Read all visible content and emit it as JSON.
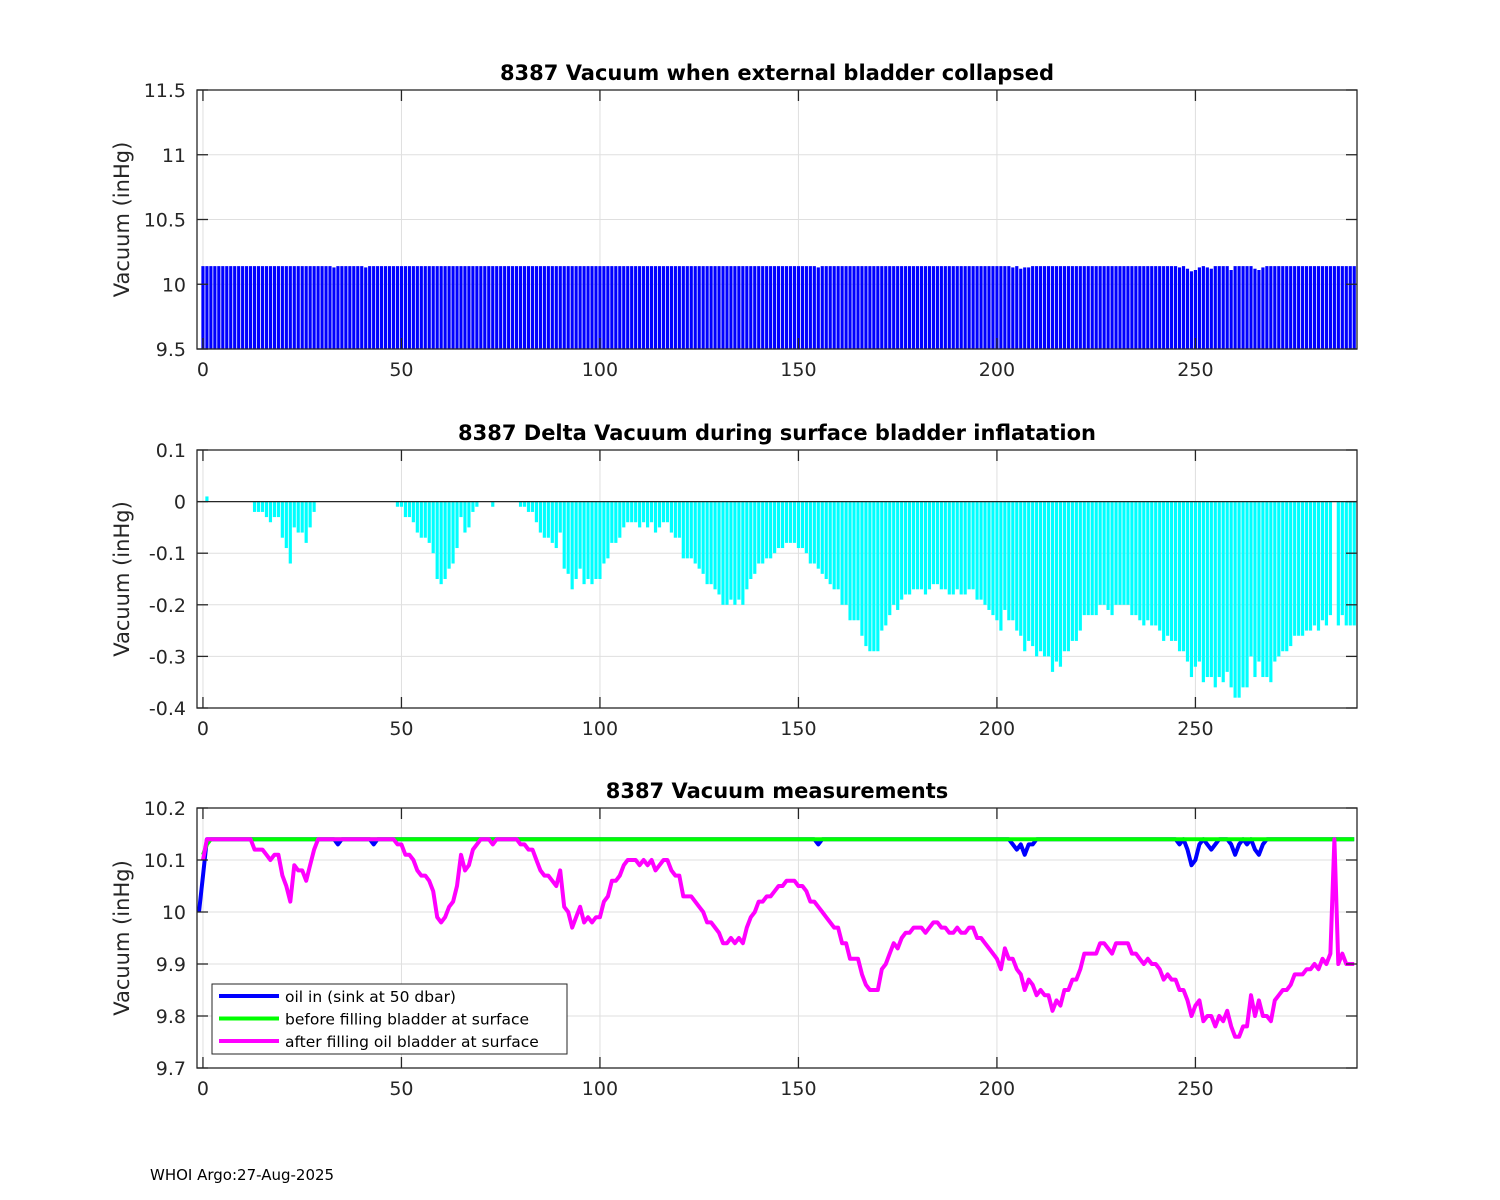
{
  "footer": "WHOI Argo:27-Aug-2025",
  "chart_data": [
    {
      "type": "bar",
      "title": "8387 Vacuum when external bladder collapsed",
      "xlabel": "",
      "ylabel": "Vacuum (inHg)",
      "xlim": [
        -1.5,
        290.7
      ],
      "ylim": [
        9.5,
        11.5
      ],
      "xticks": [
        0,
        50,
        100,
        150,
        200,
        250
      ],
      "yticks": [
        9.5,
        10,
        10.5,
        11,
        11.5
      ],
      "ytick_labels": [
        "9.5",
        "10",
        "10.5",
        "11",
        "11.5"
      ],
      "grid": true,
      "color": "#0000ff",
      "x_range": [
        0,
        290
      ],
      "default_value": 10.14,
      "exceptions": [
        [
          33,
          10.13
        ],
        [
          41,
          10.13
        ],
        [
          155,
          10.13
        ],
        [
          204,
          10.13
        ],
        [
          206,
          10.12
        ],
        [
          207,
          10.13
        ],
        [
          208,
          10.13
        ],
        [
          246,
          10.13
        ],
        [
          248,
          10.12
        ],
        [
          249,
          10.1
        ],
        [
          250,
          10.11
        ],
        [
          251,
          10.13
        ],
        [
          253,
          10.13
        ],
        [
          254,
          10.12
        ],
        [
          259,
          10.11
        ],
        [
          265,
          10.12
        ],
        [
          266,
          10.11
        ],
        [
          267,
          10.13
        ]
      ]
    },
    {
      "type": "bar",
      "title": "8387 Delta Vacuum during surface bladder inflatation",
      "xlabel": "",
      "ylabel": "Vacuum (inHg)",
      "xlim": [
        -1.5,
        290.7
      ],
      "ylim": [
        -0.4,
        0.1
      ],
      "xticks": [
        0,
        50,
        100,
        150,
        200,
        250
      ],
      "yticks": [
        -0.4,
        -0.3,
        -0.2,
        -0.1,
        0,
        0.1
      ],
      "ytick_labels": [
        "-0.4",
        "-0.3",
        "-0.2",
        "-0.1",
        "0",
        "0.1"
      ],
      "grid": true,
      "color": "#00ffff",
      "x_start": 0,
      "values": [
        0,
        0.01,
        0,
        0,
        0,
        0,
        0,
        0,
        0,
        0,
        0,
        0,
        0,
        -0.02,
        -0.02,
        -0.02,
        -0.03,
        -0.04,
        -0.03,
        -0.03,
        -0.07,
        -0.09,
        -0.12,
        -0.05,
        -0.06,
        -0.06,
        -0.08,
        -0.05,
        -0.02,
        0,
        0,
        0,
        0,
        0,
        0,
        0,
        0,
        0,
        0,
        0,
        0,
        0,
        0,
        0,
        0,
        0,
        0,
        0,
        0,
        -0.01,
        -0.01,
        -0.03,
        -0.03,
        -0.04,
        -0.06,
        -0.07,
        -0.07,
        -0.08,
        -0.1,
        -0.15,
        -0.16,
        -0.15,
        -0.13,
        -0.12,
        -0.09,
        -0.03,
        -0.06,
        -0.05,
        -0.02,
        -0.01,
        0,
        0,
        0,
        -0.01,
        0,
        0,
        0,
        0,
        0,
        0,
        -0.01,
        -0.01,
        -0.02,
        -0.02,
        -0.04,
        -0.06,
        -0.07,
        -0.07,
        -0.08,
        -0.09,
        -0.06,
        -0.13,
        -0.14,
        -0.17,
        -0.15,
        -0.13,
        -0.16,
        -0.15,
        -0.16,
        -0.15,
        -0.15,
        -0.12,
        -0.11,
        -0.08,
        -0.08,
        -0.07,
        -0.05,
        -0.04,
        -0.04,
        -0.04,
        -0.05,
        -0.04,
        -0.05,
        -0.04,
        -0.06,
        -0.05,
        -0.04,
        -0.04,
        -0.06,
        -0.07,
        -0.07,
        -0.11,
        -0.11,
        -0.11,
        -0.12,
        -0.13,
        -0.14,
        -0.16,
        -0.16,
        -0.17,
        -0.18,
        -0.2,
        -0.2,
        -0.19,
        -0.2,
        -0.19,
        -0.2,
        -0.17,
        -0.15,
        -0.14,
        -0.12,
        -0.12,
        -0.11,
        -0.11,
        -0.1,
        -0.09,
        -0.09,
        -0.08,
        -0.08,
        -0.08,
        -0.09,
        -0.09,
        -0.1,
        -0.12,
        -0.12,
        -0.13,
        -0.14,
        -0.15,
        -0.16,
        -0.17,
        -0.17,
        -0.2,
        -0.2,
        -0.23,
        -0.23,
        -0.23,
        -0.26,
        -0.28,
        -0.29,
        -0.29,
        -0.29,
        -0.25,
        -0.24,
        -0.22,
        -0.2,
        -0.21,
        -0.19,
        -0.18,
        -0.18,
        -0.17,
        -0.17,
        -0.17,
        -0.18,
        -0.17,
        -0.16,
        -0.16,
        -0.17,
        -0.17,
        -0.18,
        -0.18,
        -0.17,
        -0.18,
        -0.18,
        -0.17,
        -0.17,
        -0.19,
        -0.19,
        -0.2,
        -0.21,
        -0.22,
        -0.23,
        -0.25,
        -0.21,
        -0.23,
        -0.23,
        -0.25,
        -0.26,
        -0.29,
        -0.27,
        -0.28,
        -0.3,
        -0.29,
        -0.3,
        -0.3,
        -0.33,
        -0.31,
        -0.32,
        -0.29,
        -0.29,
        -0.27,
        -0.27,
        -0.25,
        -0.22,
        -0.22,
        -0.22,
        -0.22,
        -0.2,
        -0.2,
        -0.21,
        -0.22,
        -0.2,
        -0.2,
        -0.2,
        -0.2,
        -0.22,
        -0.22,
        -0.23,
        -0.24,
        -0.23,
        -0.24,
        -0.24,
        -0.25,
        -0.27,
        -0.26,
        -0.27,
        -0.27,
        -0.29,
        -0.29,
        -0.31,
        -0.34,
        -0.32,
        -0.31,
        -0.35,
        -0.34,
        -0.34,
        -0.36,
        -0.34,
        -0.35,
        -0.33,
        -0.36,
        -0.38,
        -0.38,
        -0.36,
        -0.36,
        -0.3,
        -0.34,
        -0.31,
        -0.34,
        -0.34,
        -0.35,
        -0.31,
        -0.3,
        -0.29,
        -0.29,
        -0.28,
        -0.26,
        -0.26,
        -0.26,
        -0.25,
        -0.25,
        -0.24,
        -0.25,
        -0.23,
        -0.24,
        -0.22,
        0,
        -0.24,
        -0.22,
        -0.24,
        -0.24,
        -0.24
      ]
    },
    {
      "type": "line",
      "title": "8387 Vacuum measurements",
      "xlabel": "",
      "ylabel": "Vacuum (inHg)",
      "xlim": [
        -1.5,
        290.7
      ],
      "ylim": [
        9.7,
        10.2
      ],
      "xticks": [
        0,
        50,
        100,
        150,
        200,
        250
      ],
      "yticks": [
        9.7,
        9.8,
        9.9,
        10,
        10.1,
        10.2
      ],
      "ytick_labels": [
        "9.7",
        "9.8",
        "9.9",
        "10",
        "10.1",
        "10.2"
      ],
      "grid": true,
      "legend_position": "bottom-left",
      "series": [
        {
          "name": "oil in (sink at 50 dbar)",
          "color": "#0000ff",
          "x_range": [
            -1,
            290
          ],
          "default_value": 10.14,
          "exceptions": [
            [
              -1,
              10.0
            ],
            [
              0,
              10.07
            ],
            [
              34,
              10.13
            ],
            [
              43,
              10.13
            ],
            [
              155,
              10.13
            ],
            [
              204,
              10.13
            ],
            [
              205,
              10.12
            ],
            [
              206,
              10.13
            ],
            [
              207,
              10.11
            ],
            [
              208,
              10.13
            ],
            [
              209,
              10.13
            ],
            [
              246,
              10.13
            ],
            [
              248,
              10.12
            ],
            [
              249,
              10.09
            ],
            [
              250,
              10.1
            ],
            [
              251,
              10.13
            ],
            [
              253,
              10.13
            ],
            [
              254,
              10.12
            ],
            [
              255,
              10.13
            ],
            [
              259,
              10.13
            ],
            [
              260,
              10.11
            ],
            [
              261,
              10.13
            ],
            [
              263,
              10.13
            ],
            [
              265,
              10.12
            ],
            [
              266,
              10.11
            ],
            [
              267,
              10.13
            ]
          ]
        },
        {
          "name": "before filling bladder at surface",
          "color": "#00ff00",
          "x_range": [
            0,
            290
          ],
          "default_value": 10.14,
          "exceptions": [
            [
              0,
              10.11
            ],
            [
              1,
              10.13
            ]
          ]
        },
        {
          "name": "after filling oil bladder at surface",
          "color": "#ff00ff",
          "x_start": 0,
          "values": [
            10.1,
            10.14,
            10.14,
            10.14,
            10.14,
            10.14,
            10.14,
            10.14,
            10.14,
            10.14,
            10.14,
            10.14,
            10.14,
            10.12,
            10.12,
            10.12,
            10.11,
            10.1,
            10.11,
            10.11,
            10.07,
            10.05,
            10.02,
            10.09,
            10.08,
            10.08,
            10.06,
            10.09,
            10.12,
            10.14,
            10.14,
            10.14,
            10.14,
            10.14,
            10.14,
            10.14,
            10.14,
            10.14,
            10.14,
            10.14,
            10.14,
            10.14,
            10.14,
            10.14,
            10.14,
            10.14,
            10.14,
            10.14,
            10.14,
            10.13,
            10.13,
            10.11,
            10.11,
            10.1,
            10.08,
            10.07,
            10.07,
            10.06,
            10.04,
            9.99,
            9.98,
            9.99,
            10.01,
            10.02,
            10.05,
            10.11,
            10.08,
            10.09,
            10.12,
            10.13,
            10.14,
            10.14,
            10.14,
            10.13,
            10.14,
            10.14,
            10.14,
            10.14,
            10.14,
            10.14,
            10.13,
            10.13,
            10.12,
            10.12,
            10.1,
            10.08,
            10.07,
            10.07,
            10.06,
            10.05,
            10.08,
            10.01,
            10.0,
            9.97,
            9.99,
            10.01,
            9.98,
            9.99,
            9.98,
            9.99,
            9.99,
            10.02,
            10.03,
            10.06,
            10.06,
            10.07,
            10.09,
            10.1,
            10.1,
            10.1,
            10.09,
            10.1,
            10.09,
            10.1,
            10.08,
            10.09,
            10.1,
            10.1,
            10.08,
            10.07,
            10.07,
            10.03,
            10.03,
            10.03,
            10.02,
            10.01,
            10.0,
            9.98,
            9.98,
            9.97,
            9.96,
            9.94,
            9.94,
            9.95,
            9.94,
            9.95,
            9.94,
            9.97,
            9.99,
            10.0,
            10.02,
            10.02,
            10.03,
            10.03,
            10.04,
            10.05,
            10.05,
            10.06,
            10.06,
            10.06,
            10.05,
            10.05,
            10.04,
            10.02,
            10.02,
            10.01,
            10.0,
            9.99,
            9.98,
            9.97,
            9.97,
            9.94,
            9.94,
            9.91,
            9.91,
            9.91,
            9.88,
            9.86,
            9.85,
            9.85,
            9.85,
            9.89,
            9.9,
            9.92,
            9.94,
            9.93,
            9.95,
            9.96,
            9.96,
            9.97,
            9.97,
            9.97,
            9.96,
            9.97,
            9.98,
            9.98,
            9.97,
            9.97,
            9.96,
            9.96,
            9.97,
            9.96,
            9.96,
            9.97,
            9.97,
            9.95,
            9.95,
            9.94,
            9.93,
            9.92,
            9.91,
            9.89,
            9.93,
            9.91,
            9.91,
            9.89,
            9.88,
            9.85,
            9.87,
            9.86,
            9.84,
            9.85,
            9.84,
            9.84,
            9.81,
            9.83,
            9.82,
            9.85,
            9.85,
            9.87,
            9.87,
            9.89,
            9.92,
            9.92,
            9.92,
            9.92,
            9.94,
            9.94,
            9.93,
            9.92,
            9.94,
            9.94,
            9.94,
            9.94,
            9.92,
            9.92,
            9.91,
            9.9,
            9.91,
            9.9,
            9.9,
            9.89,
            9.87,
            9.88,
            9.87,
            9.87,
            9.85,
            9.85,
            9.83,
            9.8,
            9.82,
            9.83,
            9.79,
            9.8,
            9.8,
            9.78,
            9.8,
            9.79,
            9.81,
            9.78,
            9.76,
            9.76,
            9.78,
            9.78,
            9.84,
            9.8,
            9.83,
            9.8,
            9.8,
            9.79,
            9.83,
            9.84,
            9.85,
            9.85,
            9.86,
            9.88,
            9.88,
            9.88,
            9.89,
            9.89,
            9.9,
            9.89,
            9.91,
            9.9,
            9.92,
            10.14,
            9.9,
            9.92,
            9.9,
            9.9,
            9.9
          ]
        }
      ]
    }
  ]
}
